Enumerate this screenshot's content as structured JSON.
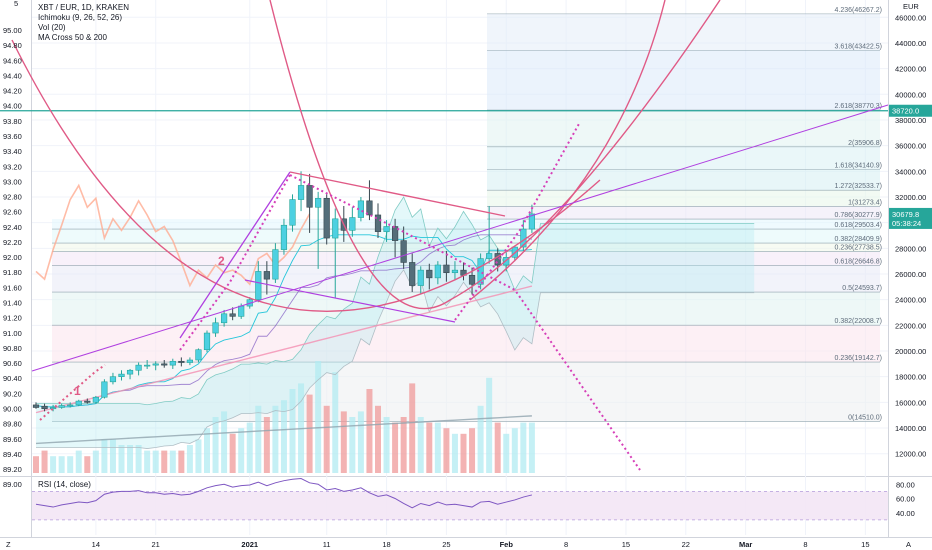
{
  "header": {
    "symbol_line": "XBT / EUR, 1D, KRAKEN",
    "indicators": [
      "Ichimoku (9, 26, 52, 26)",
      "Vol (20)",
      "MA Cross 50 & 200"
    ]
  },
  "left_scale": {
    "labels": [
      "95.00",
      "94.80",
      "94.60",
      "94.40",
      "94.20",
      "94.00",
      "93.80",
      "93.60",
      "93.40",
      "93.20",
      "93.00",
      "92.80",
      "92.60",
      "92.40",
      "92.20",
      "92.00",
      "91.80",
      "91.60",
      "91.40",
      "91.20",
      "91.00",
      "90.80",
      "90.60",
      "90.40",
      "90.20",
      "90.00",
      "89.80",
      "89.60",
      "89.40",
      "89.20",
      "89.00"
    ],
    "top_label": "5"
  },
  "right_scale": {
    "currency": "EUR",
    "labels": [
      "46000.00",
      "44000.00",
      "42000.00",
      "40000.00",
      "38000.00",
      "36000.00",
      "34000.00",
      "32000.00",
      "30000.00",
      "28000.00",
      "26000.00",
      "24000.00",
      "22000.00",
      "20000.00",
      "18000.00",
      "16000.00",
      "14000.00",
      "12000.00"
    ],
    "highlight_price": "38720.0",
    "last_price": "30679.8",
    "countdown": "05:38:24",
    "colors": {
      "highlight": "#26a69a",
      "last": "#26a69a"
    }
  },
  "x_axis": {
    "labels": [
      "14",
      "21",
      "2021",
      "11",
      "18",
      "25",
      "Feb",
      "8",
      "15",
      "22",
      "Mar",
      "8",
      "15"
    ],
    "corner_left": "Z",
    "corner_right": "A"
  },
  "fib_levels": [
    {
      "label": "4.236(46267.2)",
      "price": 46267.2
    },
    {
      "label": "3.618(43422.5)",
      "price": 43422.5
    },
    {
      "label": "2.618(38770.3)",
      "price": 38770.3
    },
    {
      "label": "2(35906.8)",
      "price": 35906.8
    },
    {
      "label": "1.618(34140.9)",
      "price": 34140.9
    },
    {
      "label": "1.272(32533.7)",
      "price": 32533.7
    },
    {
      "label": "1(31273.4)",
      "price": 31273.4
    },
    {
      "label": "0.786(30277.9)",
      "price": 30277.9
    },
    {
      "label": "0.618(29503.4)",
      "price": 29503.4
    },
    {
      "label": "0.382(28409.9)",
      "price": 28409.9
    },
    {
      "label": "0.236(27738.5)",
      "price": 27738.5
    },
    {
      "label": "0.618(26646.8)",
      "price": 26646.8
    },
    {
      "label": "0.5(24593.7)",
      "price": 24593.7
    },
    {
      "label": "0.382(22008.7)",
      "price": 22008.7
    },
    {
      "label": "0.236(19142.7)",
      "price": 19142.7
    },
    {
      "label": "0(14510.0)",
      "price": 14510.0
    }
  ],
  "wave_labels": [
    "1",
    "2"
  ],
  "rsi": {
    "label": "RSI (14, close)",
    "scale": [
      "80.00",
      "60.00",
      "40.00"
    ],
    "upper_band": 70,
    "lower_band": 30
  },
  "chart_data": {
    "type": "candlestick",
    "symbol": "XBT / EUR",
    "interval": "1D",
    "exchange": "KRAKEN",
    "y_unit": "EUR",
    "ylim": [
      10800,
      47500
    ],
    "start_date": "2020-12-07",
    "candles": [
      {
        "o": 15800,
        "h": 16000,
        "l": 15500,
        "c": 15600
      },
      {
        "o": 15700,
        "h": 15900,
        "l": 15300,
        "c": 15500
      },
      {
        "o": 15500,
        "h": 15800,
        "l": 15300,
        "c": 15600
      },
      {
        "o": 15600,
        "h": 15900,
        "l": 15500,
        "c": 15750
      },
      {
        "o": 15750,
        "h": 16000,
        "l": 15600,
        "c": 15800
      },
      {
        "o": 15800,
        "h": 16200,
        "l": 15700,
        "c": 16100
      },
      {
        "o": 16100,
        "h": 16300,
        "l": 15900,
        "c": 16000
      },
      {
        "o": 16000,
        "h": 16500,
        "l": 15900,
        "c": 16400
      },
      {
        "o": 16400,
        "h": 17800,
        "l": 16300,
        "c": 17600
      },
      {
        "o": 17600,
        "h": 18300,
        "l": 17400,
        "c": 18000
      },
      {
        "o": 18000,
        "h": 18500,
        "l": 17700,
        "c": 18200
      },
      {
        "o": 18200,
        "h": 18600,
        "l": 17800,
        "c": 18500
      },
      {
        "o": 18500,
        "h": 19100,
        "l": 18100,
        "c": 18900
      },
      {
        "o": 18900,
        "h": 19300,
        "l": 18600,
        "c": 18900
      },
      {
        "o": 18900,
        "h": 19200,
        "l": 18500,
        "c": 19000
      },
      {
        "o": 19000,
        "h": 19300,
        "l": 18700,
        "c": 18900
      },
      {
        "o": 18900,
        "h": 19400,
        "l": 18600,
        "c": 19200
      },
      {
        "o": 19200,
        "h": 19500,
        "l": 18800,
        "c": 19100
      },
      {
        "o": 19100,
        "h": 19500,
        "l": 18900,
        "c": 19300
      },
      {
        "o": 19300,
        "h": 20200,
        "l": 19100,
        "c": 20100
      },
      {
        "o": 20100,
        "h": 21600,
        "l": 19900,
        "c": 21400
      },
      {
        "o": 21400,
        "h": 22600,
        "l": 21100,
        "c": 22200
      },
      {
        "o": 22200,
        "h": 23200,
        "l": 21900,
        "c": 22900
      },
      {
        "o": 22900,
        "h": 23400,
        "l": 22400,
        "c": 22700
      },
      {
        "o": 22700,
        "h": 23700,
        "l": 22500,
        "c": 23500
      },
      {
        "o": 23500,
        "h": 24200,
        "l": 23300,
        "c": 24000
      },
      {
        "o": 24000,
        "h": 27000,
        "l": 23800,
        "c": 26200
      },
      {
        "o": 26200,
        "h": 27000,
        "l": 24400,
        "c": 25600
      },
      {
        "o": 25600,
        "h": 28400,
        "l": 25300,
        "c": 27900
      },
      {
        "o": 27900,
        "h": 30300,
        "l": 27500,
        "c": 29800
      },
      {
        "o": 29800,
        "h": 32200,
        "l": 29300,
        "c": 31800
      },
      {
        "o": 31800,
        "h": 34000,
        "l": 30900,
        "c": 32900
      },
      {
        "o": 32900,
        "h": 33800,
        "l": 29200,
        "c": 31200
      },
      {
        "o": 31200,
        "h": 32400,
        "l": 26400,
        "c": 31900
      },
      {
        "o": 31900,
        "h": 32200,
        "l": 28300,
        "c": 28800
      },
      {
        "o": 28800,
        "h": 31100,
        "l": 24100,
        "c": 30300
      },
      {
        "o": 30300,
        "h": 31300,
        "l": 28500,
        "c": 29400
      },
      {
        "o": 29400,
        "h": 31200,
        "l": 28900,
        "c": 30400
      },
      {
        "o": 30400,
        "h": 32000,
        "l": 30100,
        "c": 31700
      },
      {
        "o": 31700,
        "h": 33300,
        "l": 30200,
        "c": 30600
      },
      {
        "o": 30600,
        "h": 31500,
        "l": 28800,
        "c": 29300
      },
      {
        "o": 29300,
        "h": 30200,
        "l": 28500,
        "c": 29700
      },
      {
        "o": 29700,
        "h": 30300,
        "l": 27300,
        "c": 28600
      },
      {
        "o": 28600,
        "h": 29700,
        "l": 26400,
        "c": 26900
      },
      {
        "o": 26900,
        "h": 27600,
        "l": 24600,
        "c": 25100
      },
      {
        "o": 25100,
        "h": 26600,
        "l": 24400,
        "c": 26300
      },
      {
        "o": 26300,
        "h": 26800,
        "l": 24800,
        "c": 25700
      },
      {
        "o": 25700,
        "h": 27000,
        "l": 25200,
        "c": 26700
      },
      {
        "o": 26700,
        "h": 27800,
        "l": 25400,
        "c": 26100
      },
      {
        "o": 26100,
        "h": 27000,
        "l": 25500,
        "c": 26300
      },
      {
        "o": 26300,
        "h": 26900,
        "l": 25500,
        "c": 25900
      },
      {
        "o": 25900,
        "h": 26500,
        "l": 24400,
        "c": 25200
      },
      {
        "o": 25200,
        "h": 27600,
        "l": 24800,
        "c": 27200
      },
      {
        "o": 27200,
        "h": 31300,
        "l": 26800,
        "c": 27600
      },
      {
        "o": 27600,
        "h": 28000,
        "l": 26200,
        "c": 26700
      },
      {
        "o": 26700,
        "h": 27700,
        "l": 26200,
        "c": 27300
      },
      {
        "o": 27300,
        "h": 28200,
        "l": 27000,
        "c": 28100
      },
      {
        "o": 28100,
        "h": 30200,
        "l": 27800,
        "c": 29500
      },
      {
        "o": 29500,
        "h": 31400,
        "l": 29200,
        "c": 30680
      }
    ],
    "volume": [
      3,
      4,
      3,
      3,
      3,
      4,
      3,
      4,
      6,
      6,
      5,
      5,
      5,
      4,
      4,
      4,
      4,
      4,
      5,
      6,
      8,
      10,
      11,
      7,
      8,
      9,
      12,
      10,
      12,
      13,
      15,
      16,
      14,
      20,
      12,
      18,
      11,
      10,
      11,
      15,
      12,
      10,
      9,
      10,
      16,
      10,
      9,
      9,
      8,
      7,
      7,
      8,
      12,
      17,
      9,
      7,
      8,
      9,
      9
    ]
  }
}
